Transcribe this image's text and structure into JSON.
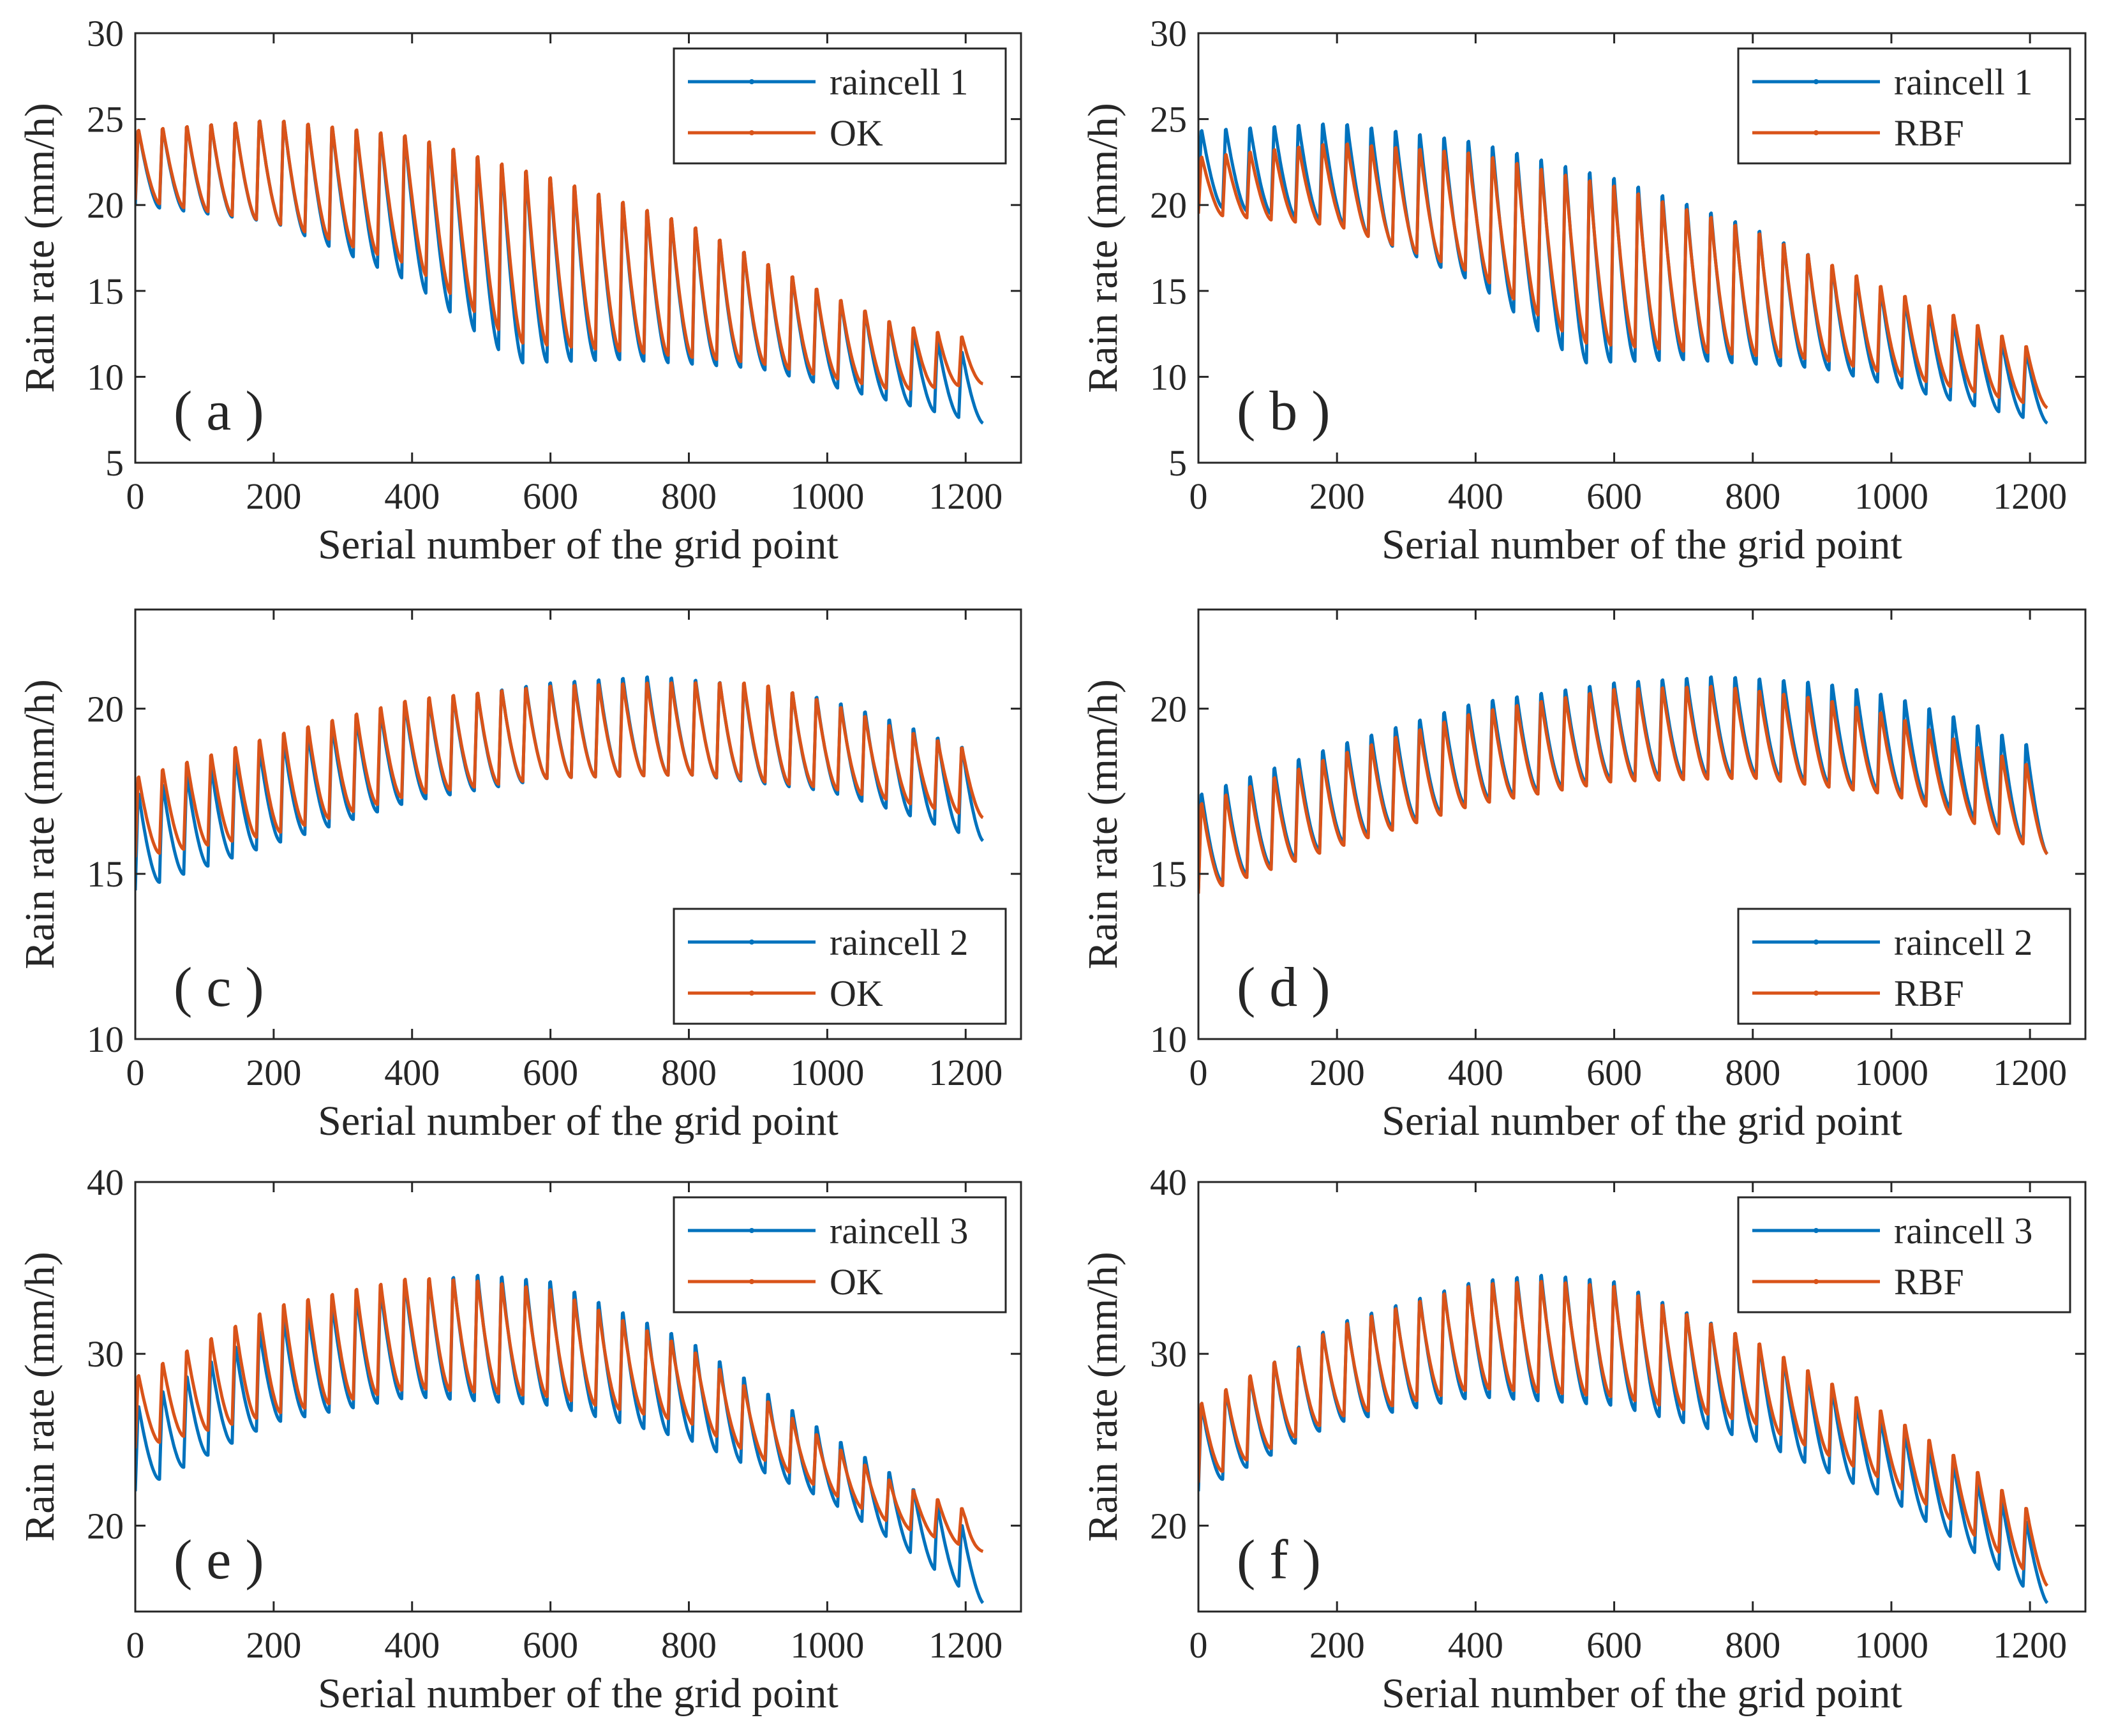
{
  "colors": {
    "series_a": "#0072BD",
    "series_b": "#D95319",
    "axis": "#262626",
    "background": "#FFFFFF"
  },
  "chart_data": [
    {
      "type": "line",
      "panel_label": "( a )",
      "xlabel": "Serial number of the grid point",
      "ylabel": "Rain rate (mm/h)",
      "xlim": [
        0,
        1280
      ],
      "ylim": [
        5,
        30
      ],
      "xticks": [
        0,
        200,
        400,
        600,
        800,
        1000,
        1200
      ],
      "yticks": [
        5,
        10,
        15,
        20,
        25,
        30
      ],
      "legend_location": "top-right",
      "series": [
        {
          "name": "raincell 1",
          "color": "#0072BD",
          "cycles": 35,
          "points": 1225,
          "peak_envelope": [
            [
              0,
              24.5
            ],
            [
              200,
              25.2
            ],
            [
              400,
              24.3
            ],
            [
              600,
              22.0
            ],
            [
              800,
              19.2
            ],
            [
              1000,
              15.0
            ],
            [
              1100,
              13.2
            ],
            [
              1200,
              11.5
            ],
            [
              1225,
              11.0
            ]
          ],
          "trough_envelope": [
            [
              0,
              20.0
            ],
            [
              200,
              19.0
            ],
            [
              400,
              15.5
            ],
            [
              550,
              10.8
            ],
            [
              700,
              11.0
            ],
            [
              900,
              10.5
            ],
            [
              1100,
              8.5
            ],
            [
              1225,
              7.3
            ]
          ]
        },
        {
          "name": "OK",
          "color": "#D95319",
          "cycles": 35,
          "points": 1225,
          "peak_envelope": [
            [
              0,
              24.5
            ],
            [
              200,
              25.2
            ],
            [
              400,
              24.3
            ],
            [
              600,
              22.0
            ],
            [
              800,
              19.2
            ],
            [
              1000,
              15.0
            ],
            [
              1100,
              13.2
            ],
            [
              1200,
              12.4
            ],
            [
              1225,
              12.0
            ]
          ],
          "trough_envelope": [
            [
              0,
              20.3
            ],
            [
              200,
              19.0
            ],
            [
              400,
              16.5
            ],
            [
              550,
              12.0
            ],
            [
              700,
              11.5
            ],
            [
              900,
              10.8
            ],
            [
              1100,
              9.2
            ],
            [
              1225,
              9.6
            ]
          ]
        }
      ]
    },
    {
      "type": "line",
      "panel_label": "( b )",
      "xlabel": "Serial number of the grid point",
      "ylabel": "Rain rate (mm/h)",
      "xlim": [
        0,
        1280
      ],
      "ylim": [
        5,
        30
      ],
      "xticks": [
        0,
        200,
        400,
        600,
        800,
        1000,
        1200
      ],
      "yticks": [
        5,
        10,
        15,
        20,
        25,
        30
      ],
      "legend_location": "top-right",
      "series": [
        {
          "name": "raincell 1",
          "color": "#0072BD",
          "cycles": 35,
          "points": 1225,
          "peak_envelope": [
            [
              0,
              24.5
            ],
            [
              200,
              25.0
            ],
            [
              400,
              24.0
            ],
            [
              600,
              22.0
            ],
            [
              800,
              19.0
            ],
            [
              1000,
              15.0
            ],
            [
              1100,
              13.2
            ],
            [
              1200,
              11.5
            ],
            [
              1225,
              11.0
            ]
          ],
          "trough_envelope": [
            [
              0,
              20.0
            ],
            [
              200,
              19.0
            ],
            [
              400,
              15.5
            ],
            [
              550,
              10.8
            ],
            [
              700,
              11.0
            ],
            [
              900,
              10.5
            ],
            [
              1100,
              8.5
            ],
            [
              1225,
              7.3
            ]
          ]
        },
        {
          "name": "RBF",
          "color": "#D95319",
          "cycles": 35,
          "points": 1225,
          "peak_envelope": [
            [
              0,
              22.9
            ],
            [
              200,
              23.8
            ],
            [
              400,
              23.3
            ],
            [
              600,
              21.5
            ],
            [
              800,
              18.8
            ],
            [
              1000,
              15.2
            ],
            [
              1100,
              13.6
            ],
            [
              1200,
              11.8
            ],
            [
              1225,
              11.3
            ]
          ],
          "trough_envelope": [
            [
              0,
              19.5
            ],
            [
              200,
              18.8
            ],
            [
              400,
              16.0
            ],
            [
              550,
              12.0
            ],
            [
              700,
              11.5
            ],
            [
              900,
              11.0
            ],
            [
              1100,
              9.3
            ],
            [
              1225,
              8.2
            ]
          ]
        }
      ]
    },
    {
      "type": "line",
      "panel_label": "( c )",
      "xlabel": "Serial number of the grid point",
      "ylabel": "Rain rate (mm/h)",
      "xlim": [
        0,
        1280
      ],
      "ylim": [
        10,
        23
      ],
      "xticks": [
        0,
        200,
        400,
        600,
        800,
        1000,
        1200
      ],
      "yticks": [
        10,
        15,
        20
      ],
      "legend_location": "bottom-right",
      "series": [
        {
          "name": "raincell 2",
          "color": "#0072BD",
          "cycles": 35,
          "points": 1225,
          "peak_envelope": [
            [
              0,
              17.5
            ],
            [
              200,
              19.0
            ],
            [
              400,
              20.3
            ],
            [
              600,
              20.9
            ],
            [
              750,
              21.1
            ],
            [
              900,
              20.8
            ],
            [
              1000,
              20.4
            ],
            [
              1100,
              19.7
            ],
            [
              1225,
              18.7
            ]
          ],
          "trough_envelope": [
            [
              0,
              14.5
            ],
            [
              200,
              15.9
            ],
            [
              400,
              17.2
            ],
            [
              600,
              17.9
            ],
            [
              800,
              18.0
            ],
            [
              1000,
              17.5
            ],
            [
              1100,
              16.9
            ],
            [
              1225,
              16.0
            ]
          ]
        },
        {
          "name": "OK",
          "color": "#D95319",
          "cycles": 35,
          "points": 1225,
          "peak_envelope": [
            [
              0,
              18.0
            ],
            [
              200,
              19.3
            ],
            [
              400,
              20.4
            ],
            [
              600,
              20.8
            ],
            [
              750,
              20.9
            ],
            [
              900,
              20.9
            ],
            [
              1000,
              20.3
            ],
            [
              1100,
              19.5
            ],
            [
              1225,
              18.7
            ]
          ],
          "trough_envelope": [
            [
              0,
              15.5
            ],
            [
              200,
              16.2
            ],
            [
              400,
              17.4
            ],
            [
              600,
              17.9
            ],
            [
              800,
              18.0
            ],
            [
              1000,
              17.6
            ],
            [
              1100,
              17.2
            ],
            [
              1225,
              16.7
            ]
          ]
        }
      ]
    },
    {
      "type": "line",
      "panel_label": "( d )",
      "xlabel": "Serial number of the grid point",
      "ylabel": "Rain rate (mm/h)",
      "xlim": [
        0,
        1280
      ],
      "ylim": [
        10,
        23
      ],
      "xticks": [
        0,
        200,
        400,
        600,
        800,
        1000,
        1200
      ],
      "yticks": [
        10,
        15,
        20
      ],
      "legend_location": "bottom-right",
      "series": [
        {
          "name": "raincell 2",
          "color": "#0072BD",
          "cycles": 35,
          "points": 1225,
          "peak_envelope": [
            [
              0,
              17.5
            ],
            [
              200,
              19.0
            ],
            [
              400,
              20.3
            ],
            [
              600,
              20.9
            ],
            [
              750,
              21.1
            ],
            [
              900,
              20.9
            ],
            [
              1000,
              20.5
            ],
            [
              1100,
              19.8
            ],
            [
              1225,
              18.8
            ]
          ],
          "trough_envelope": [
            [
              0,
              14.5
            ],
            [
              200,
              15.9
            ],
            [
              400,
              17.2
            ],
            [
              600,
              17.9
            ],
            [
              800,
              18.0
            ],
            [
              1000,
              17.5
            ],
            [
              1100,
              16.9
            ],
            [
              1225,
              15.6
            ]
          ]
        },
        {
          "name": "RBF",
          "color": "#D95319",
          "cycles": 35,
          "points": 1225,
          "peak_envelope": [
            [
              0,
              17.2
            ],
            [
              200,
              18.7
            ],
            [
              400,
              20.0
            ],
            [
              600,
              20.7
            ],
            [
              750,
              20.8
            ],
            [
              900,
              20.4
            ],
            [
              1000,
              19.9
            ],
            [
              1100,
              19.1
            ],
            [
              1225,
              18.2
            ]
          ],
          "trough_envelope": [
            [
              0,
              14.4
            ],
            [
              200,
              15.8
            ],
            [
              400,
              17.1
            ],
            [
              600,
              17.8
            ],
            [
              800,
              17.9
            ],
            [
              1000,
              17.4
            ],
            [
              1100,
              16.7
            ],
            [
              1225,
              15.6
            ]
          ]
        }
      ]
    },
    {
      "type": "line",
      "panel_label": "( e )",
      "xlabel": "Serial number of the grid point",
      "ylabel": "Rain rate (mm/h)",
      "xlim": [
        0,
        1280
      ],
      "ylim": [
        15,
        40
      ],
      "xticks": [
        0,
        200,
        400,
        600,
        800,
        1000,
        1200
      ],
      "yticks": [
        20,
        30,
        40
      ],
      "legend_location": "top-right",
      "series": [
        {
          "name": "raincell 3",
          "color": "#0072BD",
          "cycles": 35,
          "points": 1225,
          "peak_envelope": [
            [
              0,
              27.0
            ],
            [
              200,
              32.0
            ],
            [
              400,
              34.5
            ],
            [
              500,
              34.9
            ],
            [
              600,
              34.5
            ],
            [
              800,
              31.0
            ],
            [
              1000,
              25.5
            ],
            [
              1100,
              23.0
            ],
            [
              1200,
              20.0
            ],
            [
              1225,
              19.5
            ]
          ],
          "trough_envelope": [
            [
              0,
              22.0
            ],
            [
              200,
              26.0
            ],
            [
              400,
              27.5
            ],
            [
              600,
              27.0
            ],
            [
              800,
              25.0
            ],
            [
              1000,
              21.5
            ],
            [
              1100,
              19.0
            ],
            [
              1225,
              15.5
            ]
          ]
        },
        {
          "name": "OK",
          "color": "#D95319",
          "cycles": 35,
          "points": 1225,
          "peak_envelope": [
            [
              0,
              28.8
            ],
            [
              200,
              33.0
            ],
            [
              400,
              34.7
            ],
            [
              500,
              34.5
            ],
            [
              600,
              34.0
            ],
            [
              800,
              30.5
            ],
            [
              1000,
              25.0
            ],
            [
              1100,
              22.5
            ],
            [
              1200,
              21.0
            ],
            [
              1225,
              19.0
            ]
          ],
          "trough_envelope": [
            [
              0,
              24.5
            ],
            [
              200,
              26.5
            ],
            [
              400,
              28.0
            ],
            [
              600,
              27.5
            ],
            [
              800,
              26.0
            ],
            [
              1000,
              22.0
            ],
            [
              1100,
              20.0
            ],
            [
              1225,
              18.5
            ]
          ]
        }
      ]
    },
    {
      "type": "line",
      "panel_label": "( f )",
      "xlabel": "Serial number of the grid point",
      "ylabel": "Rain rate (mm/h)",
      "xlim": [
        0,
        1280
      ],
      "ylim": [
        15,
        40
      ],
      "xticks": [
        0,
        200,
        400,
        600,
        800,
        1000,
        1200
      ],
      "yticks": [
        20,
        30,
        40
      ],
      "legend_location": "top-right",
      "series": [
        {
          "name": "raincell 3",
          "color": "#0072BD",
          "cycles": 35,
          "points": 1225,
          "peak_envelope": [
            [
              0,
              27.0
            ],
            [
              200,
              32.0
            ],
            [
              400,
              34.5
            ],
            [
              500,
              34.9
            ],
            [
              600,
              34.5
            ],
            [
              800,
              31.0
            ],
            [
              1000,
              26.0
            ],
            [
              1100,
              23.5
            ],
            [
              1200,
              20.2
            ],
            [
              1225,
              19.8
            ]
          ],
          "trough_envelope": [
            [
              0,
              22.0
            ],
            [
              200,
              26.0
            ],
            [
              400,
              27.5
            ],
            [
              600,
              27.0
            ],
            [
              800,
              25.0
            ],
            [
              1000,
              21.5
            ],
            [
              1100,
              19.0
            ],
            [
              1225,
              15.5
            ]
          ]
        },
        {
          "name": "RBF",
          "color": "#D95319",
          "cycles": 35,
          "points": 1225,
          "peak_envelope": [
            [
              0,
              27.2
            ],
            [
              200,
              31.8
            ],
            [
              400,
              34.3
            ],
            [
              500,
              34.5
            ],
            [
              600,
              34.2
            ],
            [
              800,
              31.0
            ],
            [
              1000,
              26.5
            ],
            [
              1100,
              24.0
            ],
            [
              1200,
              21.0
            ],
            [
              1225,
              20.5
            ]
          ],
          "trough_envelope": [
            [
              0,
              22.5
            ],
            [
              200,
              26.3
            ],
            [
              400,
              28.0
            ],
            [
              600,
              27.5
            ],
            [
              800,
              26.0
            ],
            [
              1000,
              22.5
            ],
            [
              1100,
              20.0
            ],
            [
              1225,
              16.5
            ]
          ]
        }
      ]
    }
  ]
}
